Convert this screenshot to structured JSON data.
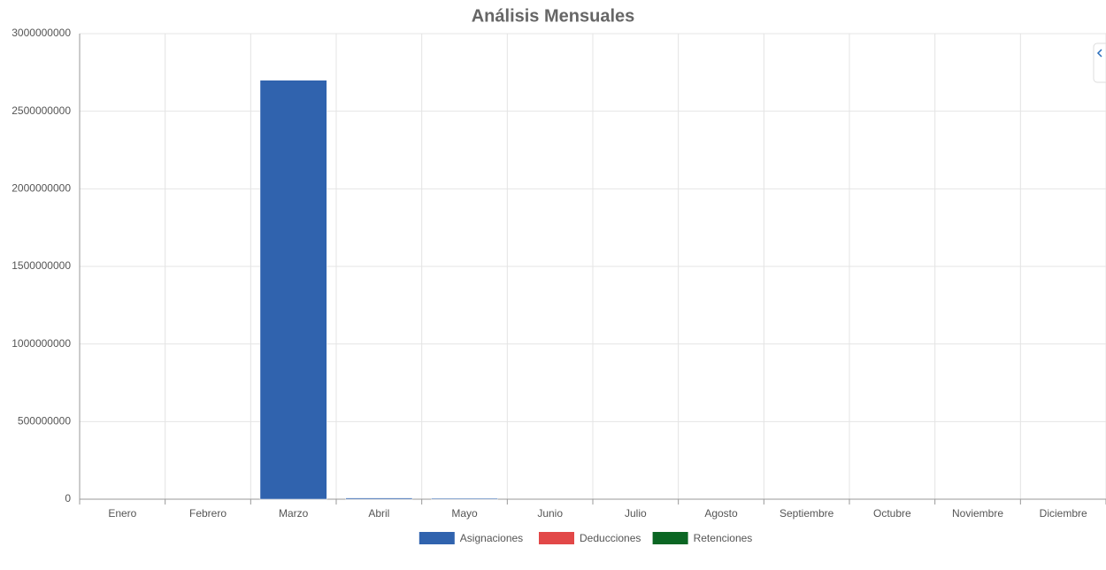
{
  "chart_data": {
    "type": "stacked_bar",
    "title": "Análisis Mensuales",
    "categories": [
      "Enero",
      "Febrero",
      "Marzo",
      "Abril",
      "Mayo",
      "Junio",
      "Julio",
      "Agosto",
      "Septiembre",
      "Octubre",
      "Noviembre",
      "Diciembre"
    ],
    "series": [
      {
        "name": "Asignaciones",
        "color": "#3063ae",
        "values": [
          0,
          0,
          2700000000,
          8000000,
          6000000,
          0,
          0,
          0,
          0,
          0,
          0,
          0
        ]
      },
      {
        "name": "Deducciones",
        "color": "#e24848",
        "values": [
          0,
          0,
          0,
          0,
          0,
          0,
          0,
          0,
          0,
          0,
          0,
          0
        ]
      },
      {
        "name": "Retenciones",
        "color": "#0b6623",
        "values": [
          0,
          0,
          0,
          0,
          0,
          0,
          0,
          0,
          0,
          0,
          0,
          0
        ]
      }
    ],
    "ylim": [
      0,
      3000000000
    ],
    "yticks": [
      0,
      500000000,
      1000000000,
      1500000000,
      2000000000,
      2500000000,
      3000000000
    ],
    "grid": true
  }
}
